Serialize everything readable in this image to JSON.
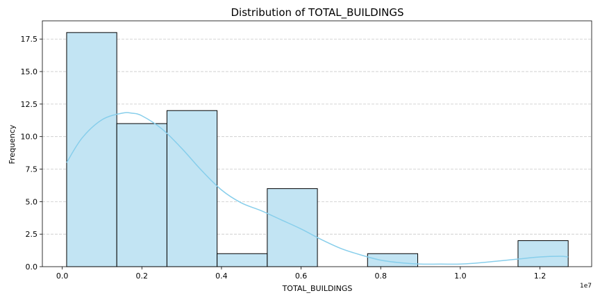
{
  "chart_data": {
    "type": "bar",
    "title": "Distribution of TOTAL_BUILDINGS",
    "xlabel": "TOTAL_BUILDINGS",
    "ylabel": "Frequency",
    "x_offset_label": "1e7",
    "xlim": [
      -0.05,
      1.33
    ],
    "ylim": [
      0,
      18.9
    ],
    "grid": "y-dashed",
    "x_ticks": [
      0.0,
      0.2,
      0.4,
      0.6,
      0.8,
      1.0,
      1.2
    ],
    "x_tick_labels": [
      "0.0",
      "0.2",
      "0.4",
      "0.6",
      "0.8",
      "1.0",
      "1.2"
    ],
    "y_ticks": [
      0.0,
      2.5,
      5.0,
      7.5,
      10.0,
      12.5,
      15.0,
      17.5
    ],
    "y_tick_labels": [
      "0.0",
      "2.5",
      "5.0",
      "7.5",
      "10.0",
      "12.5",
      "15.0",
      "17.5"
    ],
    "bins": [
      {
        "start": 0.011,
        "end": 0.137,
        "count": 18
      },
      {
        "start": 0.137,
        "end": 0.263,
        "count": 11
      },
      {
        "start": 0.263,
        "end": 0.389,
        "count": 12
      },
      {
        "start": 0.389,
        "end": 0.515,
        "count": 1
      },
      {
        "start": 0.515,
        "end": 0.641,
        "count": 6
      },
      {
        "start": 0.641,
        "end": 0.767,
        "count": 0
      },
      {
        "start": 0.767,
        "end": 0.893,
        "count": 1
      },
      {
        "start": 0.893,
        "end": 1.019,
        "count": 0
      },
      {
        "start": 1.019,
        "end": 1.145,
        "count": 0
      },
      {
        "start": 1.145,
        "end": 1.271,
        "count": 2
      }
    ],
    "kde": {
      "x": [
        0.011,
        0.05,
        0.1,
        0.15,
        0.175,
        0.2,
        0.25,
        0.3,
        0.35,
        0.4,
        0.45,
        0.5,
        0.55,
        0.6,
        0.65,
        0.7,
        0.75,
        0.8,
        0.85,
        0.9,
        0.95,
        1.0,
        1.05,
        1.1,
        1.15,
        1.2,
        1.25,
        1.271
      ],
      "y": [
        8.0,
        9.9,
        11.3,
        11.8,
        11.8,
        11.6,
        10.6,
        9.1,
        7.4,
        5.9,
        4.9,
        4.3,
        3.6,
        2.9,
        2.1,
        1.4,
        0.9,
        0.5,
        0.3,
        0.2,
        0.2,
        0.2,
        0.3,
        0.45,
        0.6,
        0.75,
        0.8,
        0.75
      ]
    },
    "colors": {
      "bar_fill": "#c2e4f3",
      "bar_edge": "#000000",
      "kde_line": "#87ceeb",
      "grid": "#c8c8c8"
    }
  }
}
